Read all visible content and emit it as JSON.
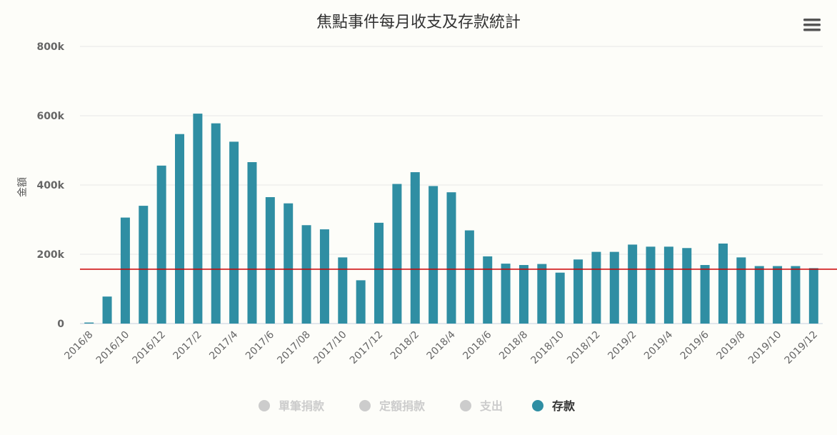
{
  "menu": {
    "icon": "hamburger-menu-icon"
  },
  "chart_data": {
    "type": "bar",
    "title": "焦點事件每月收支及存款統計",
    "ylabel": "金額",
    "ylim": [
      0,
      800000
    ],
    "yticks": [
      "0",
      "200k",
      "400k",
      "600k",
      "800k"
    ],
    "grid": true,
    "categories": [
      "2016/8",
      "2016/9",
      "2016/10",
      "2016/11",
      "2016/12",
      "2017/1",
      "2017/2",
      "2017/3",
      "2017/4",
      "2017/5",
      "2017/6",
      "2017/7",
      "2017/08",
      "2017/9",
      "2017/10",
      "2017/11",
      "2017/12",
      "2018/1",
      "2018/2",
      "2018/3",
      "2018/4",
      "2018/5",
      "2018/6",
      "2018/7",
      "2018/8",
      "2018/9",
      "2018/10",
      "2018/11",
      "2018/12",
      "2019/1",
      "2019/2",
      "2019/3",
      "2019/4",
      "2019/5",
      "2019/6",
      "2019/7",
      "2019/8",
      "2019/9",
      "2019/10",
      "2019/11",
      "2019/12"
    ],
    "xtick_labels": [
      "2016/8",
      "2016/10",
      "2016/12",
      "2017/2",
      "2017/4",
      "2017/6",
      "2017/08",
      "2017/10",
      "2017/12",
      "2018/2",
      "2018/4",
      "2018/6",
      "2018/8",
      "2018/10",
      "2018/12",
      "2019/2",
      "2019/4",
      "2019/6",
      "2019/8",
      "2019/10",
      "2019/12"
    ],
    "series": [
      {
        "name": "存款",
        "color": "#2f8ea3",
        "values": [
          3000,
          78000,
          306000,
          340000,
          456000,
          547000,
          606000,
          578000,
          525000,
          466000,
          365000,
          347000,
          284000,
          272000,
          191000,
          125000,
          291000,
          403000,
          437000,
          397000,
          379000,
          269000,
          194000,
          173000,
          169000,
          172000,
          147000,
          185000,
          207000,
          207000,
          228000,
          222000,
          222000,
          218000,
          169000,
          231000,
          191000,
          166000,
          166000,
          166000,
          160000
        ]
      }
    ],
    "reference_line": {
      "value": 157000,
      "color": "#cc0000"
    },
    "legend": {
      "placement": "bottom-center",
      "items": [
        {
          "name": "單筆捐款",
          "active": false,
          "color": "#cccccc"
        },
        {
          "name": "定額捐款",
          "active": false,
          "color": "#cccccc"
        },
        {
          "name": "支出",
          "active": false,
          "color": "#cccccc"
        },
        {
          "name": "存款",
          "active": true,
          "color": "#2f8ea3"
        }
      ]
    }
  }
}
